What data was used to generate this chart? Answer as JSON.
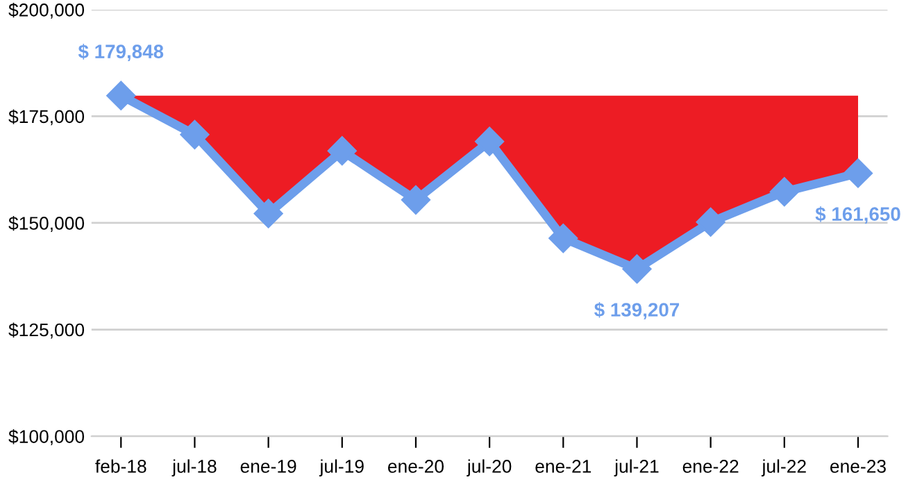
{
  "chart_data": {
    "type": "line",
    "categories": [
      "feb-18",
      "jul-18",
      "ene-19",
      "jul-19",
      "ene-20",
      "jul-20",
      "ene-21",
      "jul-21",
      "ene-22",
      "jul-22",
      "ene-23"
    ],
    "series": [
      {
        "color": "#6d9eeb",
        "marker": "diamond",
        "values": [
          179848,
          170700,
          152200,
          166900,
          155400,
          169100,
          146400,
          139207,
          150200,
          157300,
          161650
        ],
        "value_labels": [
          "$ 179,848",
          null,
          null,
          null,
          null,
          null,
          null,
          "$ 139,207",
          null,
          null,
          "$ 161,650"
        ],
        "lower": [
          179848,
          170700,
          152200,
          166900,
          155400,
          169100,
          146400,
          139207,
          150200,
          157300,
          161650
        ],
        "upper": [
          179848,
          179848,
          179848,
          179848,
          179848,
          179848,
          179848,
          179848,
          179848,
          179848,
          179848
        ]
      }
    ],
    "ylim": [
      100000,
      200000
    ],
    "yticks": [
      {
        "value": 100000,
        "label": "$100,000"
      },
      {
        "value": 125000,
        "label": "$125,000"
      },
      {
        "value": 150000,
        "label": "$150,000"
      },
      {
        "value": 175000,
        "label": "$175,000"
      },
      {
        "value": 200000,
        "label": "$200,000"
      }
    ],
    "grid": "y",
    "legend": false
  }
}
